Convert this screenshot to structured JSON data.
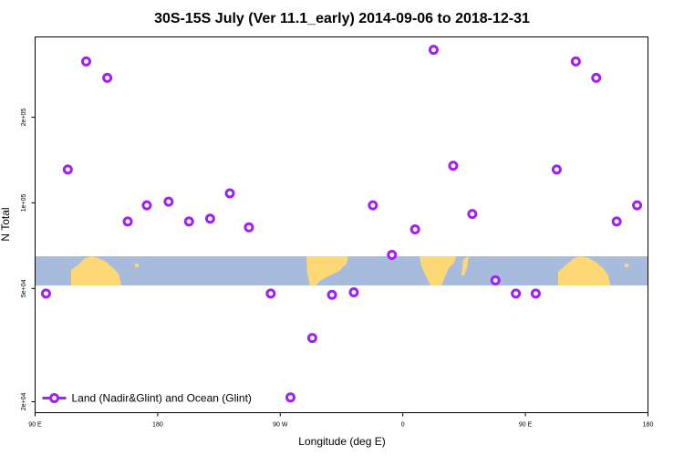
{
  "chart_data": {
    "type": "scatter",
    "title": "30S-15S July (Ver 11.1_early)   2014-09-06 to 2018-12-31",
    "x_label": "Longitude (deg E)",
    "y_label": "N Total",
    "log_y": true,
    "xlim": [
      90,
      540
    ],
    "ylim": [
      18300,
      383000
    ],
    "xticks": [
      {
        "value": 90,
        "label": "90 E"
      },
      {
        "value": 180,
        "label": "180"
      },
      {
        "value": 270,
        "label": "90 W"
      },
      {
        "value": 360,
        "label": "0"
      },
      {
        "value": 450,
        "label": "90 E"
      },
      {
        "value": 540,
        "label": "180"
      }
    ],
    "yticks": [
      {
        "value": 20000,
        "label": "2e+04"
      },
      {
        "value": 50000,
        "label": "5e+04"
      },
      {
        "value": 100000,
        "label": "1e+05"
      },
      {
        "value": 200000,
        "label": "2e+05"
      }
    ],
    "legend_position": "lower left",
    "series": [
      {
        "name": "Land (Nadir&Glint) and Ocean (Glint)",
        "color": "#a020f0",
        "x": [
          98,
          114,
          127.5,
          143,
          158,
          172,
          188,
          203,
          218.5,
          233,
          247,
          263,
          277.5,
          293.5,
          308,
          324,
          338,
          352,
          369,
          382.6,
          397,
          411,
          428,
          443,
          457.6,
          473,
          487,
          502,
          517,
          532
        ],
        "values": [
          48000,
          131000,
          314000,
          275000,
          86000,
          98000,
          101000,
          86000,
          88000,
          108000,
          82000,
          48000,
          20700,
          33500,
          47500,
          48500,
          98000,
          65600,
          80700,
          345000,
          135000,
          91400,
          53400,
          48000,
          48000,
          131000,
          314000,
          275000,
          86000,
          98000
        ]
      }
    ]
  }
}
